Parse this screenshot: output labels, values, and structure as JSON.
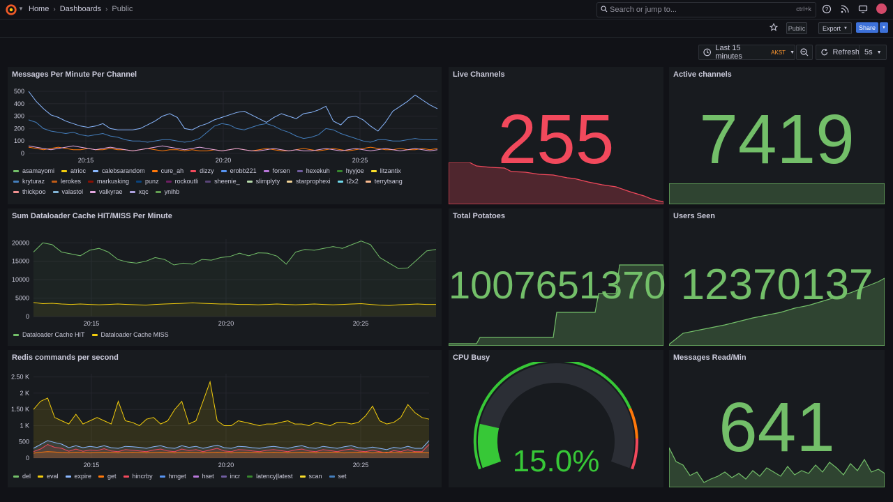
{
  "header": {
    "breadcrumbs": [
      "Home",
      "Dashboards",
      "Public"
    ],
    "search_placeholder": "Search or jump to...",
    "search_shortcut": "ctrl+k",
    "public_badge": "Public",
    "export_label": "Export",
    "share_label": "Share"
  },
  "time": {
    "range_label": "Last 15 minutes",
    "tz": "AKST",
    "refresh_label": "Refresh",
    "interval": "5s"
  },
  "colors": {
    "stat_red": "#f2495c",
    "stat_green": "#73bf69",
    "grid": "#24262d"
  },
  "panels": {
    "mpm": {
      "title": "Messages Per Minute Per Channel",
      "legend": [
        {
          "name": "asamayomi",
          "color": "#73bf69"
        },
        {
          "name": "atrioc",
          "color": "#f2cc0c"
        },
        {
          "name": "calebsarandom",
          "color": "#8ab8ff"
        },
        {
          "name": "cure_ah",
          "color": "#ff780a"
        },
        {
          "name": "dizzy",
          "color": "#f2495c"
        },
        {
          "name": "erobb221",
          "color": "#5794f2"
        },
        {
          "name": "forsen",
          "color": "#b877d9"
        },
        {
          "name": "hexekuh",
          "color": "#705da0"
        },
        {
          "name": "hyyjoe",
          "color": "#37872d"
        },
        {
          "name": "litzantix",
          "color": "#fade2a"
        },
        {
          "name": "kryturaz",
          "color": "#447ebc"
        },
        {
          "name": "lerokes",
          "color": "#c15c17"
        },
        {
          "name": "markusking",
          "color": "#890f02"
        },
        {
          "name": "punz",
          "color": "#0a437c"
        },
        {
          "name": "rockoutli",
          "color": "#6d1f62"
        },
        {
          "name": "sheenie_",
          "color": "#584477"
        },
        {
          "name": "slimplyty",
          "color": "#b7dbab"
        },
        {
          "name": "starprophexi",
          "color": "#f4d598"
        },
        {
          "name": "t2x2",
          "color": "#70dbed"
        },
        {
          "name": "terrytsang",
          "color": "#f9ba8f"
        },
        {
          "name": "thickpoo",
          "color": "#f29191"
        },
        {
          "name": "valastol",
          "color": "#82b5d8"
        },
        {
          "name": "valkyrae",
          "color": "#e5a8e2"
        },
        {
          "name": "xqc",
          "color": "#aea2e0"
        },
        {
          "name": "ynihb",
          "color": "#629e51"
        }
      ]
    },
    "live": {
      "title": "Live Channels",
      "value": "255"
    },
    "active": {
      "title": "Active channels",
      "value": "7419"
    },
    "cache": {
      "title": "Sum Dataloader Cache HIT/MISS Per Minute",
      "legend": [
        {
          "name": "Dataloader Cache HIT",
          "color": "#73bf69"
        },
        {
          "name": "Dataloader Cache MISS",
          "color": "#f2cc0c"
        }
      ]
    },
    "potatoes": {
      "title": "Total Potatoes",
      "value": "1007651370"
    },
    "users": {
      "title": "Users Seen",
      "value": "12370137"
    },
    "redis": {
      "title": "Redis commands per second",
      "legend": [
        {
          "name": "del",
          "color": "#73bf69"
        },
        {
          "name": "eval",
          "color": "#f2cc0c"
        },
        {
          "name": "expire",
          "color": "#8ab8ff"
        },
        {
          "name": "get",
          "color": "#ff780a"
        },
        {
          "name": "hincrby",
          "color": "#f2495c"
        },
        {
          "name": "hmget",
          "color": "#5794f2"
        },
        {
          "name": "hset",
          "color": "#b877d9"
        },
        {
          "name": "incr",
          "color": "#705da0"
        },
        {
          "name": "latency|latest",
          "color": "#37872d"
        },
        {
          "name": "scan",
          "color": "#fade2a"
        },
        {
          "name": "set",
          "color": "#447ebc"
        }
      ]
    },
    "cpu": {
      "title": "CPU Busy",
      "value": "15.0%",
      "percent": 15
    },
    "msgread": {
      "title": "Messages Read/Min",
      "value": "641"
    }
  },
  "chart_data": [
    {
      "type": "line",
      "title": "Messages Per Minute Per Channel",
      "x_ticks": [
        "20:15",
        "20:20",
        "20:25"
      ],
      "y_ticks": [
        "0",
        "100",
        "200",
        "300",
        "400",
        "500"
      ],
      "ylim": [
        0,
        500
      ],
      "series": [
        {
          "name": "calebsarandom",
          "color": "#8ab8ff",
          "values": [
            500,
            420,
            360,
            310,
            290,
            260,
            240,
            220,
            210,
            220,
            240,
            200,
            190,
            190,
            190,
            200,
            230,
            260,
            300,
            320,
            290,
            200,
            190,
            220,
            240,
            270,
            290,
            310,
            330,
            340,
            310,
            280,
            250,
            290,
            320,
            300,
            280,
            320,
            330,
            350,
            380,
            260,
            230,
            290,
            300,
            270,
            220,
            180,
            250,
            340,
            380,
            420,
            470,
            430,
            390,
            360
          ]
        },
        {
          "name": "kryturaz",
          "color": "#447ebc",
          "values": [
            270,
            250,
            200,
            180,
            170,
            160,
            170,
            150,
            140,
            150,
            160,
            140,
            130,
            110,
            100,
            100,
            90,
            100,
            110,
            110,
            100,
            90,
            100,
            120,
            170,
            220,
            240,
            230,
            200,
            190,
            210,
            230,
            240,
            220,
            190,
            170,
            140,
            120,
            130,
            150,
            200,
            190,
            160,
            140,
            120,
            100,
            90,
            110,
            110,
            100,
            100,
            110,
            120,
            110,
            110,
            110
          ]
        },
        {
          "name": "cure_ah",
          "color": "#ff780a",
          "values": [
            50,
            40,
            30,
            40,
            50,
            40,
            30,
            30,
            40,
            30,
            30,
            40,
            30,
            30,
            20,
            30,
            40,
            30,
            20,
            30,
            30,
            20,
            30,
            20,
            20,
            30,
            20,
            30,
            40,
            30,
            20,
            30,
            40,
            30,
            20,
            20,
            30,
            40,
            30,
            20,
            30,
            40,
            30,
            20,
            30,
            40,
            50,
            40,
            30,
            30,
            40,
            30,
            30,
            40,
            30,
            40
          ]
        },
        {
          "name": "valkyrae",
          "color": "#e5a8e2",
          "values": [
            60,
            50,
            40,
            30,
            40,
            50,
            60,
            50,
            40,
            30,
            40,
            50,
            40,
            30,
            20,
            30,
            40,
            50,
            60,
            50,
            40,
            30,
            40,
            50,
            40,
            30,
            20,
            30,
            40,
            30,
            20,
            20,
            30,
            40,
            30,
            20,
            30,
            20,
            20,
            30,
            40,
            30,
            20,
            30,
            40,
            30,
            20,
            30,
            40,
            30,
            20,
            30,
            40,
            30,
            20,
            30
          ]
        }
      ]
    },
    {
      "type": "line",
      "title": "Sum Dataloader Cache HIT/MISS Per Minute",
      "x_ticks": [
        "20:15",
        "20:20",
        "20:25"
      ],
      "y_ticks": [
        "0",
        "5000",
        "10000",
        "15000",
        "20000"
      ],
      "ylim": [
        0,
        21000
      ],
      "series": [
        {
          "name": "Dataloader Cache HIT",
          "color": "#73bf69",
          "values": [
            17500,
            20000,
            19500,
            17500,
            17000,
            16500,
            18000,
            18500,
            17500,
            15500,
            14800,
            14500,
            15000,
            16000,
            15500,
            14000,
            14500,
            14200,
            15500,
            15300,
            16000,
            16300,
            17200,
            16500,
            17300,
            17200,
            16400,
            14200,
            17500,
            18200,
            18000,
            18500,
            19000,
            18500,
            19500,
            20500,
            19500,
            16000,
            14500,
            13000,
            13200,
            15500,
            17800,
            18200
          ]
        },
        {
          "name": "Dataloader Cache MISS",
          "color": "#f2cc0c",
          "values": [
            3800,
            3500,
            3600,
            3400,
            3300,
            3400,
            3300,
            3200,
            3300,
            3400,
            3300,
            3200,
            3100,
            3300,
            3400,
            3500,
            3600,
            3700,
            3600,
            3500,
            3400,
            3400,
            3300,
            3300,
            3200,
            3300,
            3400,
            3300,
            3200,
            3300,
            3400,
            3300,
            3200,
            3300,
            3400,
            3500,
            3300,
            3100,
            3000,
            3200,
            3300,
            3400,
            3300,
            3300
          ]
        }
      ]
    },
    {
      "type": "area",
      "title": "Redis commands per second",
      "x_ticks": [
        "20:15",
        "20:20",
        "20:25"
      ],
      "y_ticks": [
        "0",
        "500",
        "1 K",
        "1.50 K",
        "2 K",
        "2.50 K"
      ],
      "ylim": [
        0,
        2600
      ],
      "series": [
        {
          "name": "eval",
          "color": "#f2cc0c",
          "values": [
            1500,
            1750,
            1850,
            1250,
            1150,
            1050,
            1350,
            1050,
            1150,
            1250,
            1150,
            1050,
            1750,
            1150,
            1100,
            1000,
            1200,
            1250,
            1050,
            1150,
            1500,
            1750,
            1050,
            1150,
            1750,
            2350,
            1150,
            1000,
            1000,
            1150,
            1100,
            1050,
            1000,
            1050,
            1050,
            1100,
            1150,
            1050,
            1050,
            1000,
            1100,
            1050,
            1000,
            1100,
            1100,
            1050,
            1100,
            1300,
            1600,
            1150,
            1050,
            1100,
            1250,
            1650,
            1400,
            1250,
            1200
          ]
        },
        {
          "name": "expire",
          "color": "#8ab8ff",
          "values": [
            300,
            420,
            540,
            480,
            430,
            320,
            380,
            320,
            360,
            330,
            380,
            320,
            300,
            360,
            350,
            330,
            300,
            350,
            380,
            320,
            300,
            380,
            330,
            360,
            300,
            350,
            400,
            320,
            300,
            360,
            350,
            320,
            300,
            340,
            360,
            330,
            300,
            350,
            380,
            320,
            300,
            360,
            330,
            300,
            350,
            380,
            320,
            300,
            340,
            300,
            260,
            330,
            300,
            360,
            300,
            300,
            540
          ]
        },
        {
          "name": "hincrby",
          "color": "#f2495c",
          "values": [
            200,
            280,
            420,
            330,
            300,
            210,
            280,
            210,
            250,
            230,
            290,
            220,
            200,
            260,
            240,
            220,
            200,
            250,
            280,
            220,
            200,
            280,
            230,
            260,
            200,
            250,
            300,
            220,
            200,
            260,
            250,
            220,
            200,
            240,
            260,
            230,
            200,
            250,
            280,
            220,
            200,
            260,
            230,
            200,
            250,
            280,
            220,
            200,
            240,
            200,
            160,
            230,
            200,
            260,
            200,
            200,
            420
          ]
        },
        {
          "name": "get",
          "color": "#ff780a",
          "values": [
            150,
            180,
            200,
            190,
            170,
            160,
            180,
            170,
            160,
            170,
            180,
            170,
            160,
            170,
            180,
            170,
            160,
            170,
            180,
            170,
            160,
            170,
            180,
            170,
            160,
            170,
            180,
            170,
            160,
            170,
            180,
            170,
            160,
            170,
            180,
            170,
            160,
            170,
            180,
            170,
            160,
            170,
            180,
            170,
            160,
            170,
            180,
            170,
            160,
            170,
            180,
            170,
            160,
            170,
            180,
            170,
            160
          ]
        }
      ]
    }
  ]
}
